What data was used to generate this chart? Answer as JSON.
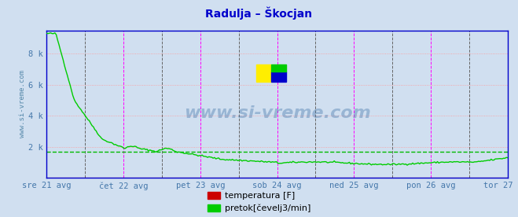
{
  "title": "Radulja – Škocjan",
  "title_color": "#0000cc",
  "title_fontsize": 10,
  "bg_color": "#d0dff0",
  "plot_bg_color": "#d0dff0",
  "x_tick_labels": [
    "sre 21 avg",
    "čet 22 avg",
    "pet 23 avg",
    "sob 24 avg",
    "ned 25 avg",
    "pon 26 avg",
    "tor 27 avg"
  ],
  "y_tick_labels": [
    "",
    "2 k",
    "4 k",
    "6 k",
    "8 k"
  ],
  "ylim": [
    0,
    9500
  ],
  "ylabel_text": "www.si-vreme.com",
  "ylabel_color": "#5588aa",
  "grid_color_h": "#ff9999",
  "avg_line_color": "#00bb00",
  "avg_line_value": 1700,
  "border_color": "#0000cc",
  "temp_color": "#cc0000",
  "flow_color": "#00cc00",
  "legend_temp_label": "temperatura [F]",
  "legend_flow_label": "pretok[čevelj3/min]",
  "watermark": "www.si-vreme.com",
  "n_points": 336
}
